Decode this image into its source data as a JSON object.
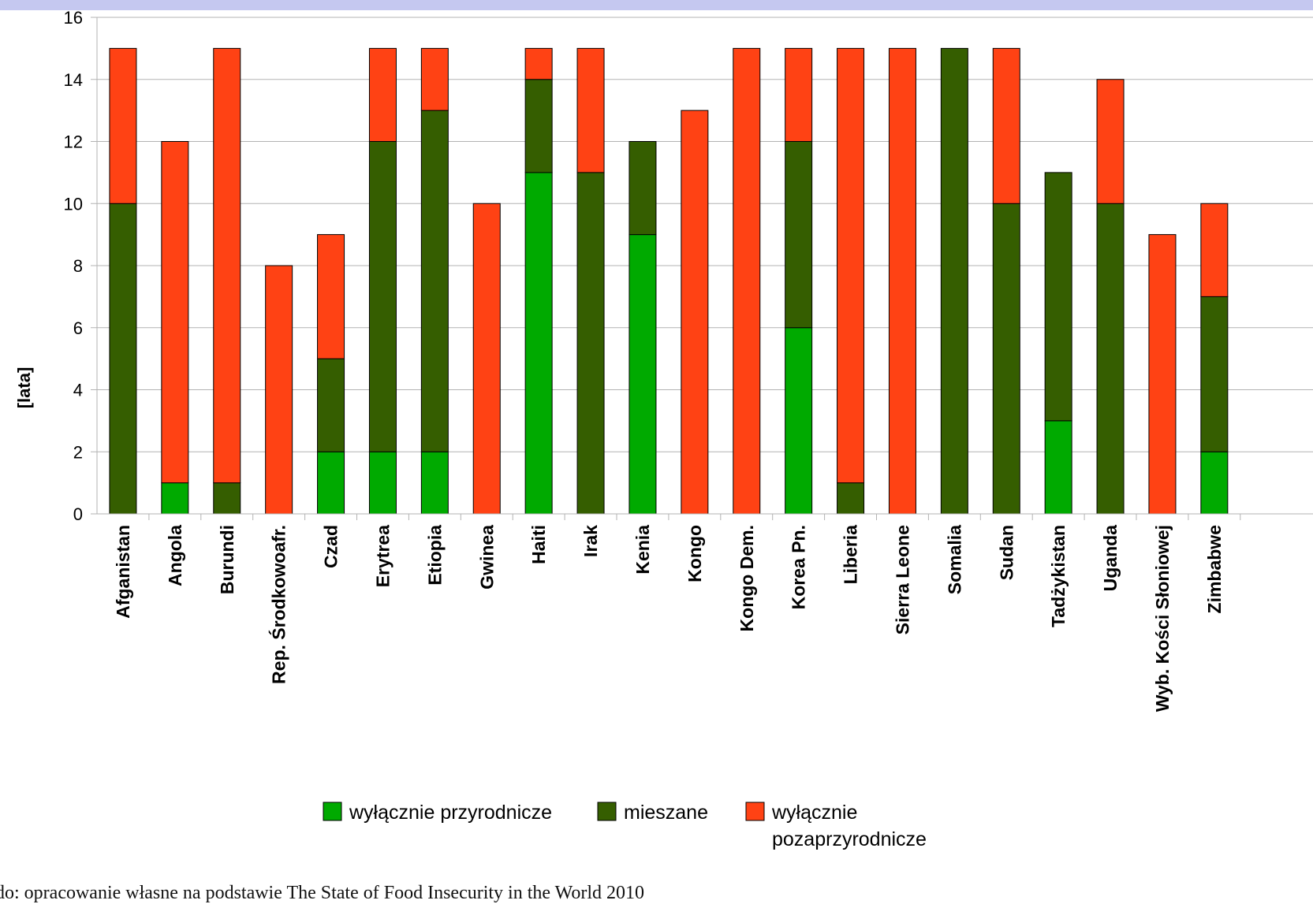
{
  "source_note": "do: opracowanie własne na podstawie The State of Food Insecurity in the World 2010",
  "chart_data": {
    "type": "bar",
    "stacked": true,
    "ylabel": "[lata]",
    "xlabel": "",
    "ylim": [
      0,
      16
    ],
    "yticks": [
      0,
      2,
      4,
      6,
      8,
      10,
      12,
      14,
      16
    ],
    "grid": true,
    "legend_position": "bottom",
    "categories": [
      "Afganistan",
      "Angola",
      "Burundi",
      "Rep. Środkowoafr.",
      "Czad",
      "Erytrea",
      "Etiopia",
      "Gwinea",
      "Haiti",
      "Irak",
      "Kenia",
      "Kongo",
      "Kongo Dem.",
      "Korea Pn.",
      "Liberia",
      "Sierra Leone",
      "Somalia",
      "Sudan",
      "Tadżykistan",
      "Uganda",
      "Wyb. Kości Słoniowej",
      "Zimbabwe"
    ],
    "series": [
      {
        "name": "wyłącznie przyrodnicze",
        "color": "#00aa00",
        "values": [
          0,
          1,
          0,
          0,
          2,
          2,
          2,
          0,
          11,
          0,
          9,
          0,
          0,
          6,
          0,
          0,
          0,
          0,
          3,
          0,
          0,
          2
        ]
      },
      {
        "name": "mieszane",
        "color": "#355e00",
        "values": [
          10,
          0,
          1,
          0,
          3,
          10,
          11,
          0,
          3,
          11,
          3,
          0,
          0,
          6,
          1,
          0,
          15,
          10,
          8,
          10,
          0,
          5
        ]
      },
      {
        "name": "wyłącznie pozaprzyrodnicze",
        "color": "#ff4214",
        "values": [
          5,
          11,
          14,
          8,
          4,
          3,
          2,
          10,
          1,
          4,
          0,
          13,
          15,
          3,
          14,
          15,
          0,
          5,
          0,
          4,
          9,
          3
        ]
      }
    ],
    "legend": [
      {
        "label": "wyłącznie przyrodnicze",
        "color": "#00aa00"
      },
      {
        "label": "mieszane",
        "color": "#355e00"
      },
      {
        "label": "wyłącznie",
        "label2": "pozaprzyrodnicze",
        "color": "#ff4214"
      }
    ]
  }
}
